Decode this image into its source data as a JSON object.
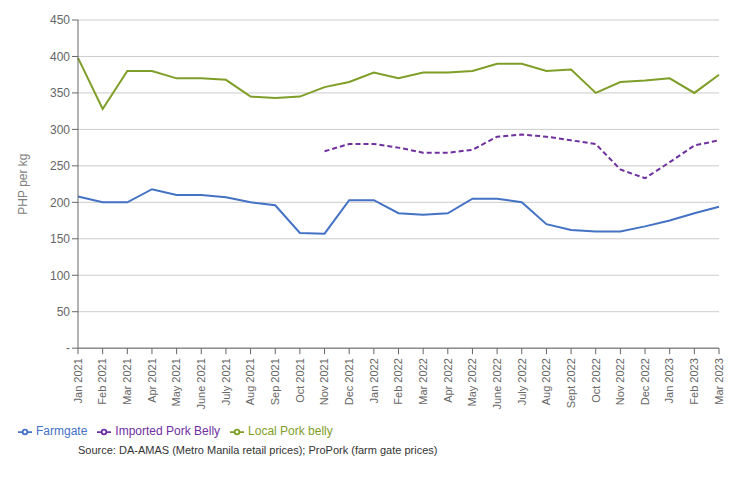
{
  "chart_data": {
    "type": "line",
    "y_label": "PHP per kg",
    "annotations": [
      "Source: DA-AMAS (Metro Manila retail prices); ProPork (farm gate prices)"
    ],
    "categories": [
      "Jan 2021",
      "Feb 2021",
      "Mar 2021",
      "Apr 2021",
      "May 2021",
      "June 2021",
      "July 2021",
      "Aug 2021",
      "Sep 2021",
      "Oct 2021",
      "Nov 2021",
      "Dec 2021",
      "Jan 2022",
      "Feb 2022",
      "Mar 2022",
      "Apr 2022",
      "May 2022",
      "June 2022",
      "July 2022",
      "Aug 2022",
      "Sept 2022",
      "Oct 2022",
      "Nov 2022",
      "Dec 2022",
      "Jan 2023",
      "Feb 2023",
      "Mar 2023"
    ],
    "series": [
      {
        "name": "Farmgate",
        "color": "#4472C4",
        "line_style": "solid",
        "values": [
          208,
          200,
          200,
          218,
          210,
          210,
          207,
          200,
          196,
          158,
          157,
          203,
          203,
          185,
          183,
          185,
          205,
          205,
          200,
          170,
          162,
          160,
          160,
          167,
          175,
          185,
          194
        ]
      },
      {
        "name": "Local Pork belly",
        "color": "#7F9E28",
        "line_style": "solid",
        "values": [
          398,
          328,
          380,
          380,
          370,
          370,
          368,
          345,
          343,
          345,
          358,
          365,
          378,
          370,
          378,
          378,
          380,
          390,
          390,
          380,
          382,
          350,
          365,
          367,
          370,
          350,
          375
        ]
      },
      {
        "name": "Imported Pork Belly",
        "color": "#7030A0",
        "line_style": "dashed",
        "values": [
          null,
          null,
          null,
          null,
          null,
          null,
          null,
          null,
          null,
          null,
          270,
          280,
          280,
          275,
          268,
          268,
          272,
          290,
          293,
          290,
          285,
          280,
          245,
          233,
          255,
          278,
          285
        ]
      }
    ],
    "ylim": [
      0,
      450
    ],
    "yticks": [
      {
        "value": 0,
        "label": "-"
      },
      50,
      100,
      150,
      200,
      250,
      300,
      350,
      400,
      450
    ],
    "grid": true,
    "legend": "bottom"
  }
}
